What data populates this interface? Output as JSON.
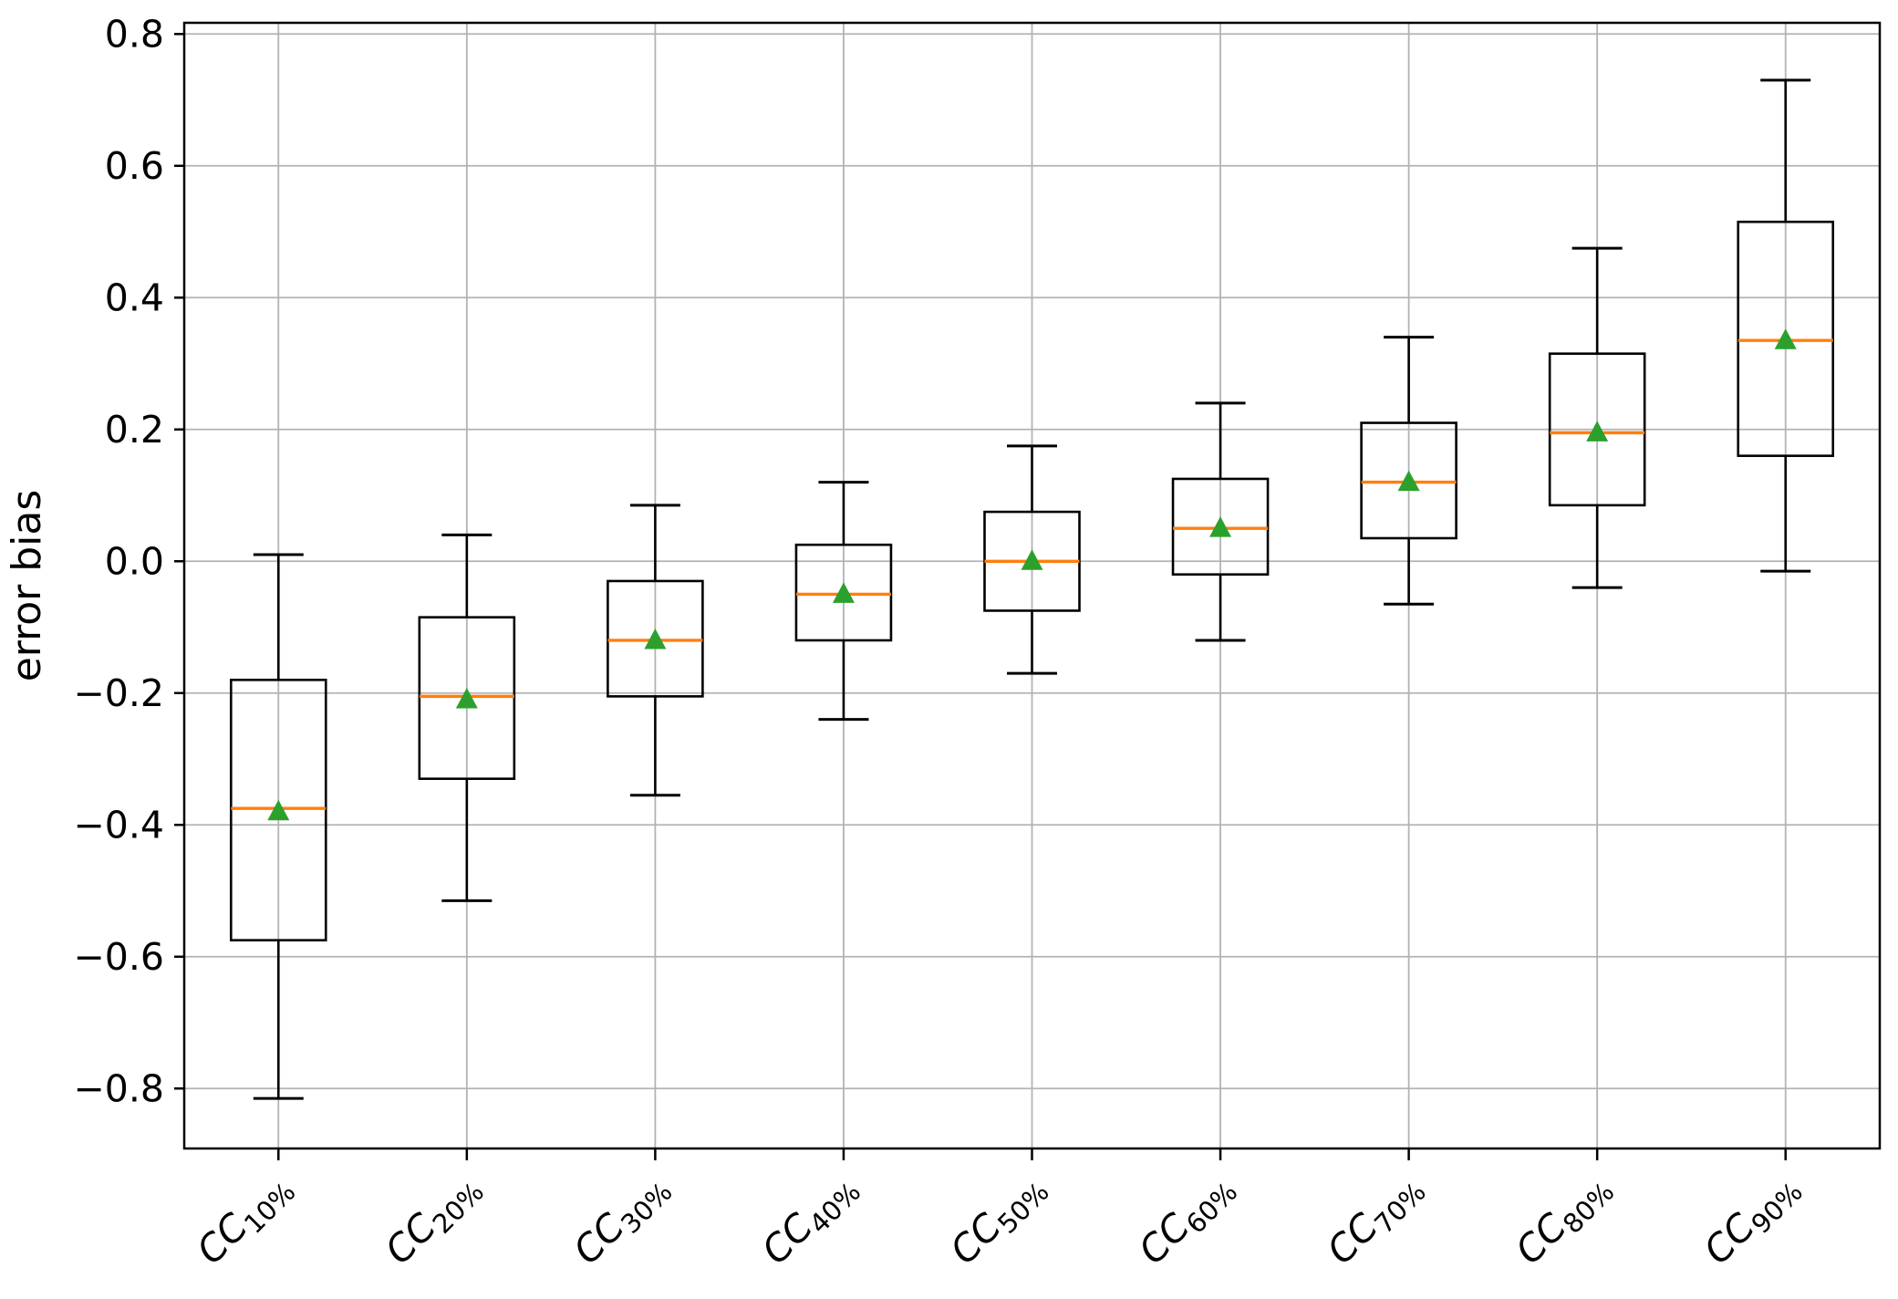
{
  "figure": {
    "background": "#ffffff"
  },
  "chart_data": {
    "type": "boxplot",
    "title": "",
    "xlabel": "",
    "ylabel": "error bias",
    "grid": true,
    "legend": "none",
    "ylim": [
      -0.891,
      0.817
    ],
    "y_ticks": [
      {
        "value": 0.8,
        "label": "0.8"
      },
      {
        "value": 0.6,
        "label": "0.6"
      },
      {
        "value": 0.4,
        "label": "0.4"
      },
      {
        "value": 0.2,
        "label": "0.2"
      },
      {
        "value": 0.0,
        "label": "0.0"
      },
      {
        "value": -0.2,
        "label": "−0.2"
      },
      {
        "value": -0.4,
        "label": "−0.4"
      },
      {
        "value": -0.6,
        "label": "−0.6"
      },
      {
        "value": -0.8,
        "label": "−0.8"
      }
    ],
    "categories": [
      {
        "label": "CC10%",
        "main": "CC",
        "sub": "10%"
      },
      {
        "label": "CC20%",
        "main": "CC",
        "sub": "20%"
      },
      {
        "label": "CC30%",
        "main": "CC",
        "sub": "30%"
      },
      {
        "label": "CC40%",
        "main": "CC",
        "sub": "40%"
      },
      {
        "label": "CC50%",
        "main": "CC",
        "sub": "50%"
      },
      {
        "label": "CC60%",
        "main": "CC",
        "sub": "60%"
      },
      {
        "label": "CC70%",
        "main": "CC",
        "sub": "70%"
      },
      {
        "label": "CC80%",
        "main": "CC",
        "sub": "80%"
      },
      {
        "label": "CC90%",
        "main": "CC",
        "sub": "90%"
      }
    ],
    "series": [
      {
        "name": "CC10%",
        "whisker_low": -0.815,
        "q1": -0.575,
        "median": -0.375,
        "mean": -0.38,
        "q3": -0.18,
        "whisker_high": 0.01
      },
      {
        "name": "CC20%",
        "whisker_low": -0.515,
        "q1": -0.33,
        "median": -0.205,
        "mean": -0.21,
        "q3": -0.085,
        "whisker_high": 0.04
      },
      {
        "name": "CC30%",
        "whisker_low": -0.355,
        "q1": -0.205,
        "median": -0.12,
        "mean": -0.12,
        "q3": -0.03,
        "whisker_high": 0.085
      },
      {
        "name": "CC40%",
        "whisker_low": -0.24,
        "q1": -0.12,
        "median": -0.05,
        "mean": -0.05,
        "q3": 0.025,
        "whisker_high": 0.12
      },
      {
        "name": "CC50%",
        "whisker_low": -0.17,
        "q1": -0.075,
        "median": 0.0,
        "mean": 0.0,
        "q3": 0.075,
        "whisker_high": 0.175
      },
      {
        "name": "CC60%",
        "whisker_low": -0.12,
        "q1": -0.02,
        "median": 0.05,
        "mean": 0.05,
        "q3": 0.125,
        "whisker_high": 0.24
      },
      {
        "name": "CC70%",
        "whisker_low": -0.065,
        "q1": 0.035,
        "median": 0.12,
        "mean": 0.12,
        "q3": 0.21,
        "whisker_high": 0.34
      },
      {
        "name": "CC80%",
        "whisker_low": -0.04,
        "q1": 0.085,
        "median": 0.195,
        "mean": 0.195,
        "q3": 0.315,
        "whisker_high": 0.475
      },
      {
        "name": "CC90%",
        "whisker_low": -0.015,
        "q1": 0.16,
        "median": 0.335,
        "mean": 0.335,
        "q3": 0.515,
        "whisker_high": 0.73
      }
    ],
    "mean_marker_shape": "triangle-up",
    "colors": {
      "box": "#000000",
      "whisker": "#000000",
      "median": "#ff7f0e",
      "mean_marker": "#2ca02c",
      "grid": "#b3b3b3",
      "spine": "#000000",
      "text": "#000000"
    }
  }
}
